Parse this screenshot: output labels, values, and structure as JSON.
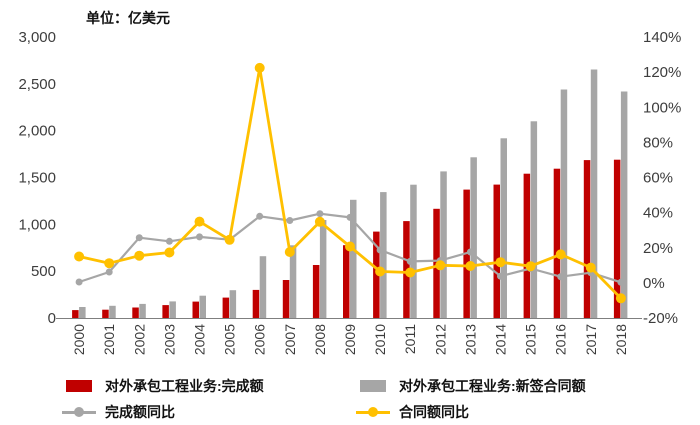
{
  "chart_data": {
    "type": "combo-bar-line",
    "unit_label": "单位：亿美元",
    "categories": [
      "2000",
      "2001",
      "2002",
      "2003",
      "2004",
      "2005",
      "2006",
      "2007",
      "2008",
      "2009",
      "2010",
      "2011",
      "2012",
      "2013",
      "2014",
      "2015",
      "2016",
      "2017",
      "2018"
    ],
    "left_axis": {
      "min": 0,
      "max": 3000,
      "tick_values": [
        0,
        500,
        1000,
        1500,
        2000,
        2500,
        3000
      ],
      "tick_labels": [
        "0",
        "500",
        "1,000",
        "1,500",
        "2,000",
        "2,500",
        "3,000"
      ]
    },
    "right_axis": {
      "min": -20,
      "max": 140,
      "tick_values": [
        -20,
        0,
        20,
        40,
        60,
        80,
        100,
        120,
        140
      ],
      "tick_labels": [
        "-20%",
        "0%",
        "20%",
        "40%",
        "60%",
        "80%",
        "100%",
        "120%",
        "140%"
      ]
    },
    "series": [
      {
        "key": "completed-amount",
        "name": "对外承包工程业务:完成额",
        "type": "bar",
        "axis": "left",
        "color": "#C00000",
        "values": [
          84,
          89,
          112,
          138,
          175,
          218,
          300,
          406,
          566,
          777,
          922,
          1034,
          1166,
          1371,
          1424,
          1541,
          1594,
          1686,
          1690
        ]
      },
      {
        "key": "new-contract-amount",
        "name": "对外承包工程业务:新签合同额",
        "type": "bar",
        "axis": "left",
        "color": "#A6A6A6",
        "values": [
          117,
          130,
          151,
          177,
          238,
          297,
          660,
          776,
          1046,
          1262,
          1344,
          1423,
          1565,
          1716,
          1918,
          2100,
          2440,
          2653,
          2418
        ]
      },
      {
        "key": "completed-yoy",
        "name": "完成额同比",
        "type": "line",
        "axis": "right",
        "color": "#A6A6A6",
        "values": [
          0.5,
          6.2,
          25.7,
          23.7,
          26.2,
          24.6,
          37.9,
          35.5,
          39.4,
          37.3,
          18.7,
          12.2,
          12.7,
          17.6,
          3.8,
          8.2,
          3.5,
          5.8,
          0.3
        ]
      },
      {
        "key": "contract-yoy",
        "name": "合同额同比",
        "type": "line",
        "axis": "right",
        "color": "#FFC000",
        "values": [
          15.0,
          11.2,
          15.5,
          17.3,
          34.9,
          24.5,
          122.4,
          17.6,
          34.8,
          20.7,
          6.5,
          5.9,
          10.0,
          9.6,
          11.8,
          9.5,
          16.2,
          8.7,
          -8.8
        ]
      }
    ],
    "legend_position": "bottom",
    "grid": "off",
    "colors": {
      "axis_text": "#3d3d3d",
      "axis_line": "#7f7f7f",
      "legend_text": "#111111"
    }
  }
}
